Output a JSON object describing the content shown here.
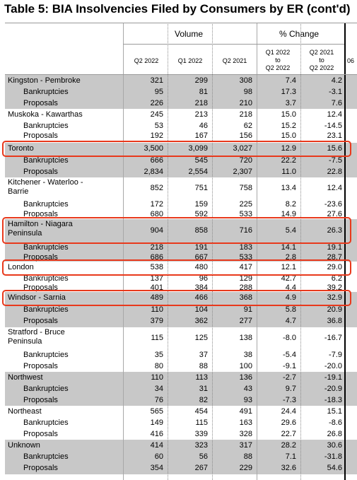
{
  "title": "Table 5: BIA Insolvencies Filed by Consumers by ER (cont'd)",
  "headers": {
    "volume": "Volume",
    "pct_change": "% Change",
    "cols": [
      "Q2 2022",
      "Q1 2022",
      "Q2 2021"
    ],
    "pct_cols": [
      "Q1 2022\nto\nQ2 2022",
      "Q2 2021\nto\nQ2 2022"
    ],
    "cut_col": "06"
  },
  "rows": [
    {
      "label": "Kingston - Pembroke",
      "v": [
        "321",
        "299",
        "308"
      ],
      "p": [
        "7.4",
        "4.2"
      ]
    },
    {
      "label": "Bankruptcies",
      "v": [
        "95",
        "81",
        "98"
      ],
      "p": [
        "17.3",
        "-3.1"
      ]
    },
    {
      "label": "Proposals",
      "v": [
        "226",
        "218",
        "210"
      ],
      "p": [
        "3.7",
        "7.6"
      ]
    },
    {
      "label": "Muskoka - Kawarthas",
      "v": [
        "245",
        "213",
        "218"
      ],
      "p": [
        "15.0",
        "12.4"
      ]
    },
    {
      "label": "Bankruptcies",
      "v": [
        "53",
        "46",
        "62"
      ],
      "p": [
        "15.2",
        "-14.5"
      ]
    },
    {
      "label": "Proposals",
      "v": [
        "192",
        "167",
        "156"
      ],
      "p": [
        "15.0",
        "23.1"
      ]
    },
    {
      "label": "Toronto",
      "v": [
        "3,500",
        "3,099",
        "3,027"
      ],
      "p": [
        "12.9",
        "15.6"
      ]
    },
    {
      "label": "Bankruptcies",
      "v": [
        "666",
        "545",
        "720"
      ],
      "p": [
        "22.2",
        "-7.5"
      ]
    },
    {
      "label": "Proposals",
      "v": [
        "2,834",
        "2,554",
        "2,307"
      ],
      "p": [
        "11.0",
        "22.8"
      ]
    },
    {
      "label": "Kitchener - Waterloo - Barrie",
      "v": [
        "852",
        "751",
        "758"
      ],
      "p": [
        "13.4",
        "12.4"
      ]
    },
    {
      "label": "Bankruptcies",
      "v": [
        "172",
        "159",
        "225"
      ],
      "p": [
        "8.2",
        "-23.6"
      ]
    },
    {
      "label": "Proposals",
      "v": [
        "680",
        "592",
        "533"
      ],
      "p": [
        "14.9",
        "27.6"
      ]
    },
    {
      "label": "Hamilton - Niagara Peninsula",
      "v": [
        "904",
        "858",
        "716"
      ],
      "p": [
        "5.4",
        "26.3"
      ]
    },
    {
      "label": "Bankruptcies",
      "v": [
        "218",
        "191",
        "183"
      ],
      "p": [
        "14.1",
        "19.1"
      ]
    },
    {
      "label": "Proposals",
      "v": [
        "686",
        "667",
        "533"
      ],
      "p": [
        "2.8",
        "28.7"
      ]
    },
    {
      "label": "London",
      "v": [
        "538",
        "480",
        "417"
      ],
      "p": [
        "12.1",
        "29.0"
      ]
    },
    {
      "label": "Bankruptcies",
      "v": [
        "137",
        "96",
        "129"
      ],
      "p": [
        "42.7",
        "6.2"
      ]
    },
    {
      "label": "Proposals",
      "v": [
        "401",
        "384",
        "288"
      ],
      "p": [
        "4.4",
        "39.2"
      ]
    },
    {
      "label": "Windsor - Sarnia",
      "v": [
        "489",
        "466",
        "368"
      ],
      "p": [
        "4.9",
        "32.9"
      ]
    },
    {
      "label": "Bankruptcies",
      "v": [
        "110",
        "104",
        "91"
      ],
      "p": [
        "5.8",
        "20.9"
      ]
    },
    {
      "label": "Proposals",
      "v": [
        "379",
        "362",
        "277"
      ],
      "p": [
        "4.7",
        "36.8"
      ]
    },
    {
      "label": "Stratford - Bruce Peninsula",
      "v": [
        "115",
        "125",
        "138"
      ],
      "p": [
        "-8.0",
        "-16.7"
      ]
    },
    {
      "label": "Bankruptcies",
      "v": [
        "35",
        "37",
        "38"
      ],
      "p": [
        "-5.4",
        "-7.9"
      ]
    },
    {
      "label": "Proposals",
      "v": [
        "80",
        "88",
        "100"
      ],
      "p": [
        "-9.1",
        "-20.0"
      ]
    },
    {
      "label": "Northwest",
      "v": [
        "110",
        "113",
        "136"
      ],
      "p": [
        "-2.7",
        "-19.1"
      ]
    },
    {
      "label": "Bankruptcies",
      "v": [
        "34",
        "31",
        "43"
      ],
      "p": [
        "9.7",
        "-20.9"
      ]
    },
    {
      "label": "Proposals",
      "v": [
        "76",
        "82",
        "93"
      ],
      "p": [
        "-7.3",
        "-18.3"
      ]
    },
    {
      "label": "Northeast",
      "v": [
        "565",
        "454",
        "491"
      ],
      "p": [
        "24.4",
        "15.1"
      ]
    },
    {
      "label": "Bankruptcies",
      "v": [
        "149",
        "115",
        "163"
      ],
      "p": [
        "29.6",
        "-8.6"
      ]
    },
    {
      "label": "Proposals",
      "v": [
        "416",
        "339",
        "328"
      ],
      "p": [
        "22.7",
        "26.8"
      ]
    },
    {
      "label": "Unknown",
      "v": [
        "414",
        "323",
        "317"
      ],
      "p": [
        "28.2",
        "30.6"
      ]
    },
    {
      "label": "Bankruptcies",
      "v": [
        "60",
        "56",
        "88"
      ],
      "p": [
        "7.1",
        "-31.8"
      ]
    },
    {
      "label": "Proposals",
      "v": [
        "354",
        "267",
        "229"
      ],
      "p": [
        "32.6",
        "54.6"
      ]
    }
  ],
  "highlight_color": "#e8391c"
}
